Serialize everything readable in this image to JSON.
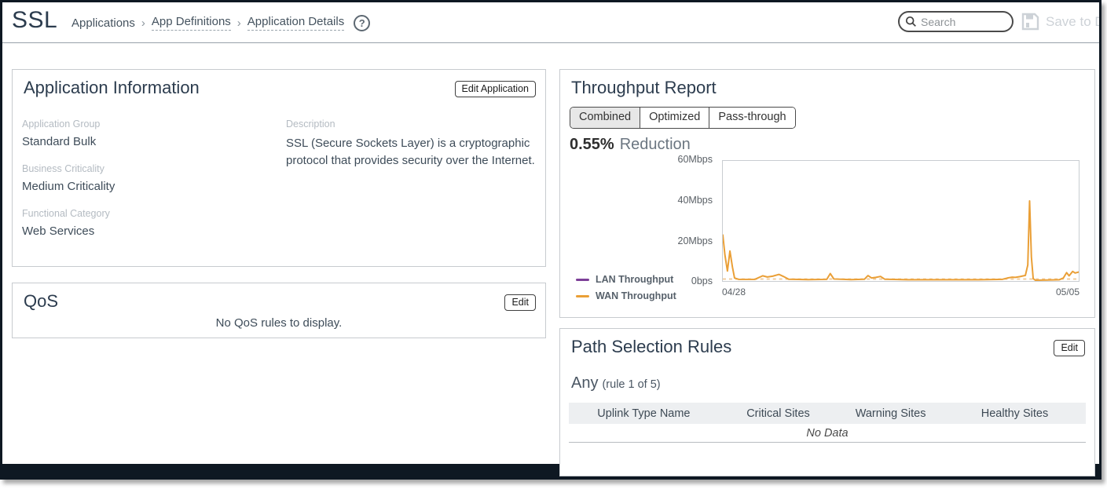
{
  "header": {
    "app_title": "SSL",
    "breadcrumb": [
      "Applications",
      "App Definitions",
      "Application Details"
    ],
    "search_placeholder": "Search",
    "save_label": "Save to Disk"
  },
  "app_info": {
    "title": "Application Information",
    "edit_button": "Edit Application",
    "fields": [
      {
        "label": "Application Group",
        "value": "Standard Bulk"
      },
      {
        "label": "Business Criticality",
        "value": "Medium Criticality"
      },
      {
        "label": "Functional Category",
        "value": "Web Services"
      }
    ],
    "description_label": "Description",
    "description": "SSL (Secure Sockets Layer) is a cryptographic protocol that provides security over the Internet."
  },
  "qos": {
    "title": "QoS",
    "edit_button": "Edit",
    "empty_message": "No QoS rules to display."
  },
  "throughput": {
    "title": "Throughput Report",
    "tabs": [
      {
        "label": "Combined",
        "selected": true
      },
      {
        "label": "Optimized",
        "selected": false
      },
      {
        "label": "Pass-through",
        "selected": false
      }
    ],
    "reduction_value": "0.55%",
    "reduction_label": "Reduction"
  },
  "chart_data": {
    "type": "line",
    "title": "Throughput Report (Combined)",
    "units": "Mbps",
    "ylim": [
      0,
      60
    ],
    "y_ticks": [
      "60Mbps",
      "40Mbps",
      "20Mbps",
      "0bps"
    ],
    "x_ticks": [
      "04/28",
      "05/05"
    ],
    "grid": false,
    "legend_position": "left-bottom",
    "legend": [
      {
        "name": "LAN Throughput",
        "color": "#7d3f98"
      },
      {
        "name": "WAN Throughput",
        "color": "#ea9f36"
      }
    ],
    "series": [
      {
        "name": "WAN Throughput",
        "color": "#ea9f36",
        "x_is_fraction_of_range": "04/28 to 05/05",
        "points": [
          [
            0.0,
            23
          ],
          [
            0.006,
            13
          ],
          [
            0.013,
            5
          ],
          [
            0.02,
            15
          ],
          [
            0.027,
            7
          ],
          [
            0.033,
            1.5
          ],
          [
            0.045,
            0.8
          ],
          [
            0.09,
            0.8
          ],
          [
            0.112,
            2.6
          ],
          [
            0.125,
            2.0
          ],
          [
            0.14,
            2.4
          ],
          [
            0.158,
            3.3
          ],
          [
            0.17,
            2.3
          ],
          [
            0.185,
            0.9
          ],
          [
            0.24,
            0.7
          ],
          [
            0.292,
            0.8
          ],
          [
            0.302,
            3.7
          ],
          [
            0.312,
            1.0
          ],
          [
            0.36,
            0.7
          ],
          [
            0.398,
            0.9
          ],
          [
            0.408,
            2.7
          ],
          [
            0.418,
            1.5
          ],
          [
            0.43,
            1.8
          ],
          [
            0.443,
            2.3
          ],
          [
            0.455,
            0.9
          ],
          [
            0.52,
            0.6
          ],
          [
            0.62,
            0.6
          ],
          [
            0.72,
            0.6
          ],
          [
            0.785,
            0.8
          ],
          [
            0.8,
            1.5
          ],
          [
            0.812,
            1.9
          ],
          [
            0.822,
            1.8
          ],
          [
            0.835,
            2.2
          ],
          [
            0.85,
            2.8
          ],
          [
            0.857,
            8
          ],
          [
            0.862,
            40
          ],
          [
            0.867,
            12
          ],
          [
            0.872,
            1.2
          ],
          [
            0.878,
            0.4
          ],
          [
            0.91,
            0.5
          ],
          [
            0.945,
            0.6
          ],
          [
            0.957,
            1.5
          ],
          [
            0.966,
            4.2
          ],
          [
            0.973,
            2.6
          ],
          [
            0.983,
            4.8
          ],
          [
            0.99,
            4.0
          ],
          [
            1.0,
            4.5
          ]
        ]
      }
    ],
    "baseline_dashed": {
      "y": 0,
      "color": "#f0c894",
      "note": "dashed line along 0bps baseline"
    }
  },
  "path_rules": {
    "title": "Path Selection Rules",
    "edit_button": "Edit",
    "rule_name": "Any",
    "rule_position": "(rule 1 of 5)",
    "columns": [
      "Uplink Type Name",
      "Critical Sites",
      "Warning Sites",
      "Healthy Sites"
    ],
    "empty_message": "No Data"
  }
}
